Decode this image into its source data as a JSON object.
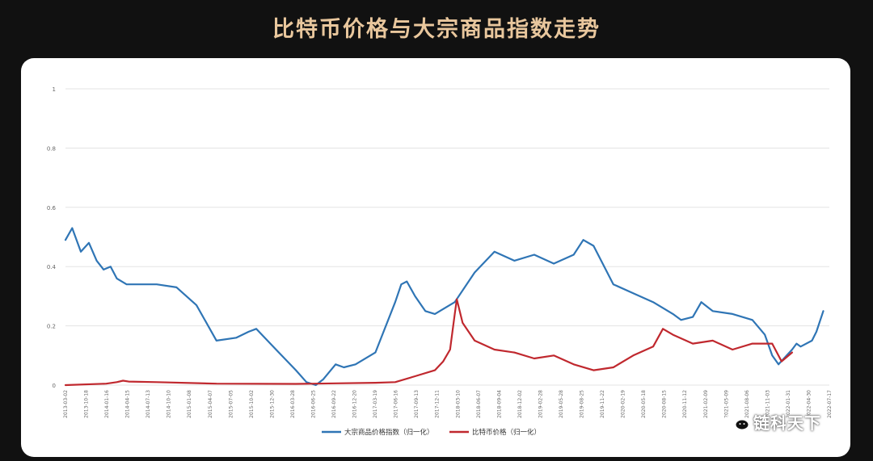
{
  "page_title": "比特币价格与大宗商品指数走势",
  "watermark": {
    "text": "链科天下",
    "icon": "wechat-icon"
  },
  "colors": {
    "background": "#111111",
    "title": "#e9c79d",
    "card": "#ffffff",
    "commodity_series": "#2f75b5",
    "bitcoin_series": "#c0282e",
    "grid": "#e3e3e3"
  },
  "chart_data": {
    "type": "line",
    "title": "",
    "xlabel": "",
    "ylabel": "",
    "ylim": [
      0,
      1
    ],
    "y_ticks": [
      "0",
      "0.2",
      "0.4",
      "0.6",
      "0.8",
      "1"
    ],
    "grid": true,
    "legend": "bottom-center",
    "x_start": "2013-03-02",
    "x_end": "2022-07-17",
    "x_tick_labels": [
      "2013-03-02",
      "2013-10-18",
      "2014-01-16",
      "2014-04-15",
      "2014-07-13",
      "2014-10-10",
      "2015-01-08",
      "2015-04-07",
      "2015-07-05",
      "2015-10-02",
      "2015-12-30",
      "2016-03-28",
      "2016-06-25",
      "2016-09-22",
      "2016-12-20",
      "2017-03-19",
      "2017-06-16",
      "2017-09-13",
      "2017-12-11",
      "2018-03-10",
      "2018-06-07",
      "2018-09-04",
      "2018-12-02",
      "2019-02-28",
      "2019-05-28",
      "2019-08-25",
      "2019-11-22",
      "2020-02-19",
      "2020-05-18",
      "2020-08-15",
      "2020-11-12",
      "2021-02-09",
      "2021-05-09",
      "2021-08-06",
      "2021-11-03",
      "2022-01-31",
      "2022-04-30",
      "2022-07-17"
    ],
    "series": [
      {
        "name": "大宗商品价格指数（归一化）",
        "color": "#2f75b5",
        "points": [
          [
            "2013-03-02",
            0.49
          ],
          [
            "2013-04-01",
            0.53
          ],
          [
            "2013-05-10",
            0.45
          ],
          [
            "2013-06-15",
            0.48
          ],
          [
            "2013-07-20",
            0.42
          ],
          [
            "2013-08-20",
            0.39
          ],
          [
            "2013-09-20",
            0.4
          ],
          [
            "2013-10-18",
            0.36
          ],
          [
            "2013-12-01",
            0.34
          ],
          [
            "2014-04-15",
            0.34
          ],
          [
            "2014-07-13",
            0.33
          ],
          [
            "2014-10-10",
            0.27
          ],
          [
            "2015-01-08",
            0.15
          ],
          [
            "2015-04-07",
            0.16
          ],
          [
            "2015-06-01",
            0.18
          ],
          [
            "2015-07-05",
            0.19
          ],
          [
            "2015-10-02",
            0.12
          ],
          [
            "2015-12-30",
            0.05
          ],
          [
            "2016-02-15",
            0.01
          ],
          [
            "2016-03-28",
            0.0
          ],
          [
            "2016-05-01",
            0.02
          ],
          [
            "2016-06-25",
            0.07
          ],
          [
            "2016-08-01",
            0.06
          ],
          [
            "2016-09-22",
            0.07
          ],
          [
            "2016-12-20",
            0.11
          ],
          [
            "2017-03-19",
            0.28
          ],
          [
            "2017-04-15",
            0.34
          ],
          [
            "2017-05-10",
            0.35
          ],
          [
            "2017-06-16",
            0.3
          ],
          [
            "2017-08-01",
            0.25
          ],
          [
            "2017-09-13",
            0.24
          ],
          [
            "2017-12-11",
            0.28
          ],
          [
            "2018-03-10",
            0.38
          ],
          [
            "2018-06-07",
            0.45
          ],
          [
            "2018-09-04",
            0.42
          ],
          [
            "2018-12-02",
            0.44
          ],
          [
            "2019-02-28",
            0.41
          ],
          [
            "2019-05-28",
            0.44
          ],
          [
            "2019-07-10",
            0.49
          ],
          [
            "2019-08-25",
            0.47
          ],
          [
            "2019-11-22",
            0.34
          ],
          [
            "2020-02-19",
            0.31
          ],
          [
            "2020-05-18",
            0.28
          ],
          [
            "2020-08-15",
            0.24
          ],
          [
            "2020-09-20",
            0.22
          ],
          [
            "2020-11-12",
            0.23
          ],
          [
            "2020-12-20",
            0.28
          ],
          [
            "2021-02-09",
            0.25
          ],
          [
            "2021-05-09",
            0.24
          ],
          [
            "2021-08-06",
            0.22
          ],
          [
            "2021-10-01",
            0.17
          ],
          [
            "2021-11-03",
            0.1
          ],
          [
            "2021-12-01",
            0.07
          ],
          [
            "2022-01-31",
            0.12
          ],
          [
            "2022-02-20",
            0.14
          ],
          [
            "2022-03-10",
            0.13
          ],
          [
            "2022-04-30",
            0.15
          ],
          [
            "2022-05-20",
            0.18
          ],
          [
            "2022-06-20",
            0.25
          ]
        ]
      },
      {
        "name": "比特币价格（归一化）",
        "color": "#c0282e",
        "points": [
          [
            "2013-03-02",
            0.0
          ],
          [
            "2013-09-01",
            0.005
          ],
          [
            "2013-10-18",
            0.01
          ],
          [
            "2013-11-15",
            0.015
          ],
          [
            "2013-12-10",
            0.012
          ],
          [
            "2014-04-15",
            0.01
          ],
          [
            "2015-01-08",
            0.005
          ],
          [
            "2015-12-30",
            0.004
          ],
          [
            "2016-06-25",
            0.006
          ],
          [
            "2016-12-20",
            0.008
          ],
          [
            "2017-03-19",
            0.01
          ],
          [
            "2017-06-16",
            0.03
          ],
          [
            "2017-09-13",
            0.05
          ],
          [
            "2017-10-20",
            0.08
          ],
          [
            "2017-11-20",
            0.12
          ],
          [
            "2017-12-11",
            0.24
          ],
          [
            "2017-12-20",
            0.29
          ],
          [
            "2018-01-15",
            0.21
          ],
          [
            "2018-03-10",
            0.15
          ],
          [
            "2018-06-07",
            0.12
          ],
          [
            "2018-09-04",
            0.11
          ],
          [
            "2018-12-02",
            0.09
          ],
          [
            "2019-02-28",
            0.1
          ],
          [
            "2019-05-28",
            0.07
          ],
          [
            "2019-08-25",
            0.05
          ],
          [
            "2019-11-22",
            0.06
          ],
          [
            "2020-02-19",
            0.1
          ],
          [
            "2020-05-18",
            0.13
          ],
          [
            "2020-07-01",
            0.19
          ],
          [
            "2020-08-15",
            0.17
          ],
          [
            "2020-11-12",
            0.14
          ],
          [
            "2021-02-09",
            0.15
          ],
          [
            "2021-05-09",
            0.12
          ],
          [
            "2021-08-06",
            0.14
          ],
          [
            "2021-11-03",
            0.14
          ],
          [
            "2021-12-15",
            0.08
          ],
          [
            "2022-01-31",
            0.11
          ]
        ]
      }
    ]
  }
}
